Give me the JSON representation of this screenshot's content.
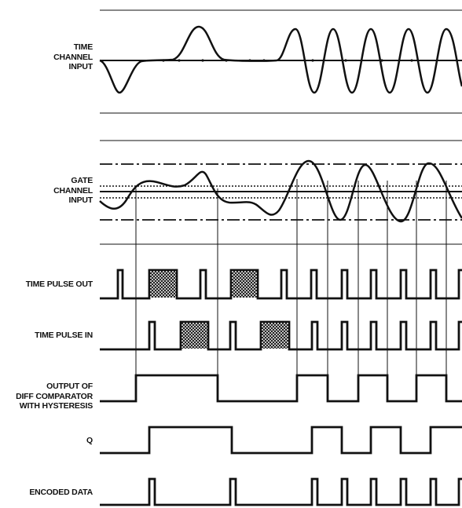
{
  "labels": {
    "time_channel_input": [
      "TIME",
      "CHANNEL",
      "INPUT"
    ],
    "gate_channel_input": [
      "GATE",
      "CHANNEL",
      "INPUT"
    ],
    "time_pulse_out": [
      "TIME PULSE OUT"
    ],
    "time_pulse_in": [
      "TIME PULSE IN"
    ],
    "diff_comparator_output": [
      "OUTPUT OF",
      "DIFF COMPARATOR",
      "WITH HYSTERESIS"
    ],
    "q": [
      "Q"
    ],
    "encoded_data": [
      "ENCODED DATA"
    ]
  },
  "colors": {
    "ink": "#111111",
    "background": "#ffffff"
  }
}
